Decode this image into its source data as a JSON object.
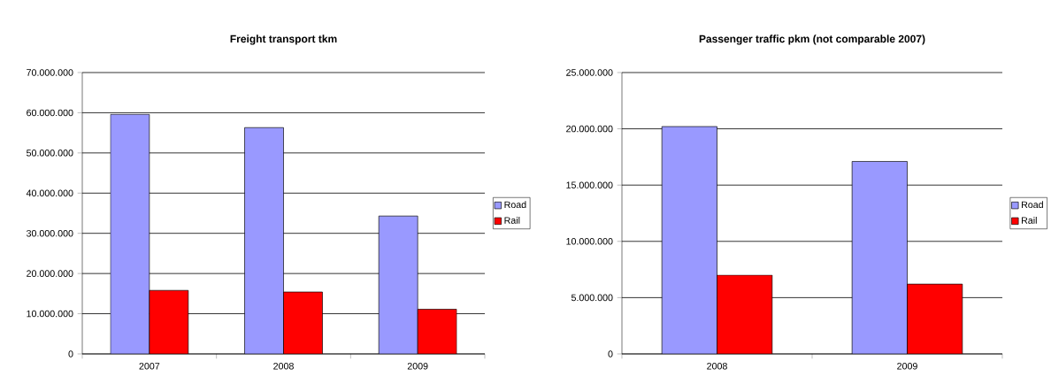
{
  "chart_data": [
    {
      "type": "bar",
      "title": "Freight transport tkm",
      "categories": [
        "2007",
        "2008",
        "2009"
      ],
      "series": [
        {
          "name": "Road",
          "color": "#9999ff",
          "values": [
            59600000,
            56300000,
            34300000
          ]
        },
        {
          "name": "Rail",
          "color": "#ff0000",
          "values": [
            15800000,
            15400000,
            11100000
          ]
        }
      ],
      "ylim": [
        0,
        70000000
      ],
      "yticks": [
        {
          "value": 0,
          "label": "0"
        },
        {
          "value": 10000000,
          "label": "10.000.000"
        },
        {
          "value": 20000000,
          "label": "20.000.000"
        },
        {
          "value": 30000000,
          "label": "30.000.000"
        },
        {
          "value": 40000000,
          "label": "40.000.000"
        },
        {
          "value": 50000000,
          "label": "50.000.000"
        },
        {
          "value": 60000000,
          "label": "60.000.000"
        },
        {
          "value": 70000000,
          "label": "70.000.000"
        }
      ],
      "grid": "y",
      "legend": "right"
    },
    {
      "type": "bar",
      "title": "Passenger traffic pkm (not comparable 2007)",
      "categories": [
        "2008",
        "2009"
      ],
      "series": [
        {
          "name": "Road",
          "color": "#9999ff",
          "values": [
            20200000,
            17100000
          ]
        },
        {
          "name": "Rail",
          "color": "#ff0000",
          "values": [
            7000000,
            6200000
          ]
        }
      ],
      "ylim": [
        0,
        25000000
      ],
      "yticks": [
        {
          "value": 0,
          "label": "0"
        },
        {
          "value": 5000000,
          "label": "5.000.000"
        },
        {
          "value": 10000000,
          "label": "10.000.000"
        },
        {
          "value": 15000000,
          "label": "15.000.000"
        },
        {
          "value": 20000000,
          "label": "20.000.000"
        },
        {
          "value": 25000000,
          "label": "25.000.000"
        }
      ],
      "grid": "y",
      "legend": "right"
    }
  ]
}
